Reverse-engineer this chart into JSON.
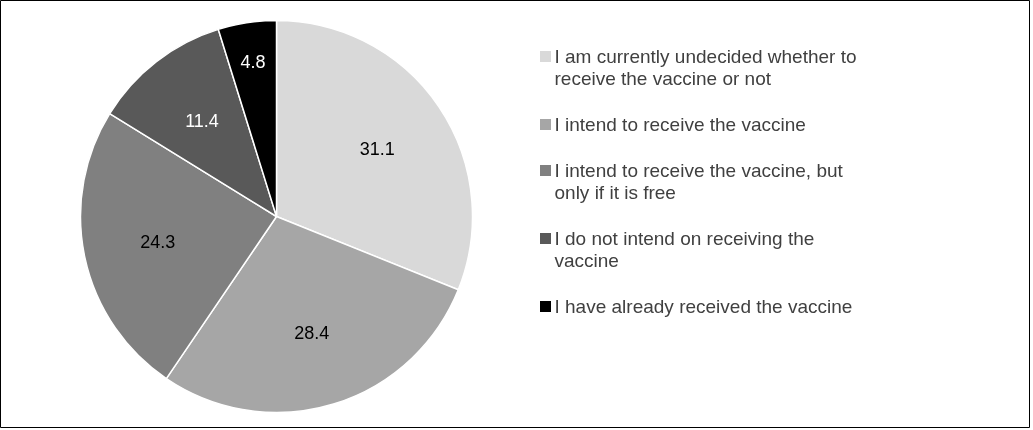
{
  "chart_data": {
    "type": "pie",
    "categories": [
      "I am currently undecided whether to receive the vaccine or not",
      "I intend to receive the vaccine",
      "I intend to receive the vaccine, but only if it is free",
      "I do not intend on receiving the vaccine",
      "I have already received the vaccine"
    ],
    "values": [
      31.1,
      28.4,
      24.3,
      11.4,
      4.8
    ],
    "colors": [
      "#d9d9d9",
      "#a6a6a6",
      "#808080",
      "#595959",
      "#000000"
    ],
    "data_labels": true,
    "legend": "right"
  }
}
